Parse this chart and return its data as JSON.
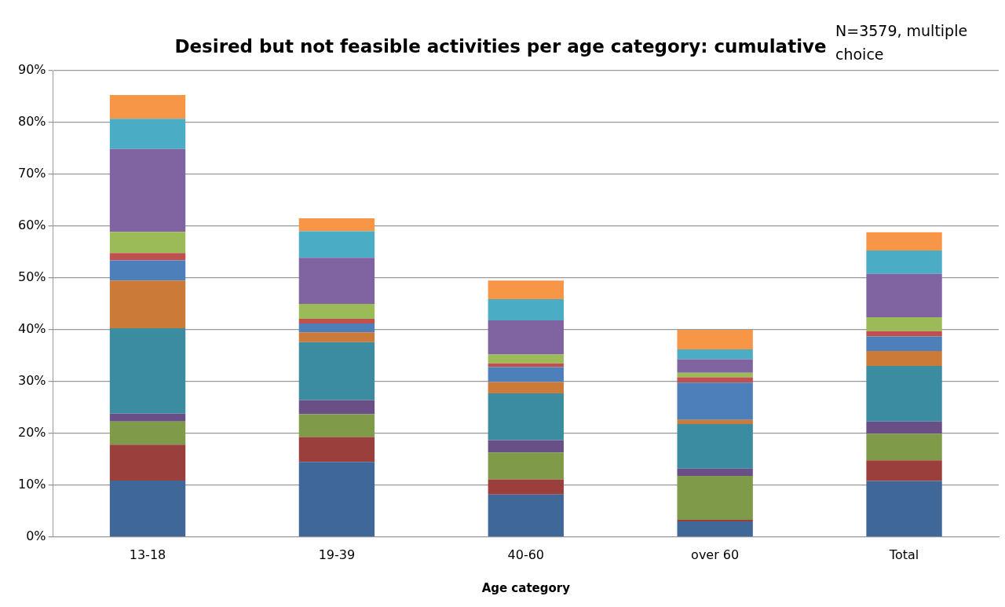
{
  "chart_data": {
    "type": "bar",
    "title": "Desired but not feasible activities per age category: cumulative",
    "xlabel": "Age category",
    "annotations": [
      "N=3579, multiple choice"
    ],
    "categories": [
      "13-18",
      "19-39",
      "40-60",
      "over 60",
      "Total"
    ],
    "stacked": true,
    "grid": "y",
    "legend": false,
    "ylim": [
      0,
      90
    ],
    "yticks": [
      {
        "value": 0,
        "label": "0%"
      },
      {
        "value": 10,
        "label": "10%"
      },
      {
        "value": 20,
        "label": "20%"
      },
      {
        "value": 30,
        "label": "30%"
      },
      {
        "value": 40,
        "label": "40%"
      },
      {
        "value": 50,
        "label": "50%"
      },
      {
        "value": 60,
        "label": "60%"
      },
      {
        "value": 70,
        "label": "70%"
      },
      {
        "value": 80,
        "label": "80%"
      },
      {
        "value": 90,
        "label": "90%"
      }
    ],
    "series": [
      {
        "color": "#3f6898",
        "values": [
          10.9,
          14.5,
          8.2,
          3.0,
          10.8
        ]
      },
      {
        "color": "#9b3f3d",
        "values": [
          6.9,
          4.8,
          2.9,
          0.3,
          4.0
        ]
      },
      {
        "color": "#7f9a48",
        "values": [
          4.5,
          4.4,
          5.2,
          8.5,
          5.1
        ]
      },
      {
        "color": "#684f86",
        "values": [
          1.5,
          2.7,
          2.4,
          1.4,
          2.4
        ]
      },
      {
        "color": "#3b8ba1",
        "values": [
          16.5,
          11.2,
          9.0,
          8.6,
          10.7
        ]
      },
      {
        "color": "#cb7a37",
        "values": [
          9.2,
          1.9,
          2.2,
          0.8,
          2.9
        ]
      },
      {
        "color": "#4d80bb",
        "values": [
          3.9,
          1.7,
          2.9,
          7.2,
          2.8
        ]
      },
      {
        "color": "#c0504d",
        "values": [
          1.4,
          0.9,
          0.7,
          1.0,
          1.0
        ]
      },
      {
        "color": "#9bbb59",
        "values": [
          4.1,
          2.9,
          1.7,
          0.9,
          2.7
        ]
      },
      {
        "color": "#8064a2",
        "values": [
          16.0,
          8.9,
          6.6,
          2.6,
          8.4
        ]
      },
      {
        "color": "#4bacc6",
        "values": [
          5.8,
          5.1,
          4.1,
          1.9,
          4.5
        ]
      },
      {
        "color": "#f79646",
        "values": [
          4.6,
          2.5,
          3.6,
          3.8,
          3.5
        ]
      }
    ]
  }
}
